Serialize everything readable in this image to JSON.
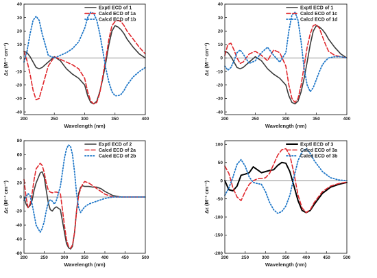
{
  "figure": {
    "background": "#ffffff"
  },
  "chart_data": [
    {
      "type": "line",
      "xlabel": "Wavelength (nm)",
      "ylabel": "Δε (M⁻¹ cm⁻¹)",
      "xlim": [
        200,
        400
      ],
      "ylim": [
        -42,
        40
      ],
      "xticks": [
        200,
        250,
        300,
        350,
        400
      ],
      "yticks": [
        -40,
        -30,
        -20,
        -10,
        0,
        10,
        20,
        30,
        40
      ],
      "zero_line": true,
      "legend_position": "top-right",
      "series": [
        {
          "name": "Exptl ECD of 1",
          "color": "#3a3a3a",
          "style": "solid",
          "width": 1.6,
          "x": [
            200,
            205,
            210,
            215,
            220,
            225,
            230,
            240,
            250,
            260,
            270,
            280,
            290,
            300,
            305,
            310,
            315,
            320,
            325,
            330,
            335,
            340,
            345,
            350,
            355,
            360,
            365,
            370,
            380,
            390,
            400
          ],
          "y": [
            5,
            4,
            1,
            -3,
            -7,
            -8,
            -7,
            -3,
            1,
            -2,
            -8,
            -12,
            -15,
            -20,
            -28,
            -33,
            -34,
            -32,
            -25,
            -15,
            -3,
            10,
            20,
            24,
            23,
            21,
            18,
            14,
            8,
            3,
            0
          ]
        },
        {
          "name": "Calcd ECD of 1a",
          "color": "#e0282d",
          "style": "dash",
          "width": 1.6,
          "x": [
            200,
            205,
            210,
            215,
            220,
            225,
            230,
            240,
            250,
            260,
            270,
            280,
            290,
            300,
            305,
            310,
            315,
            320,
            325,
            330,
            335,
            340,
            345,
            350,
            355,
            360,
            365,
            370,
            380,
            390,
            400
          ],
          "y": [
            5,
            -2,
            -12,
            -24,
            -31,
            -30,
            -22,
            -6,
            1,
            -1,
            -3,
            -5,
            -8,
            -15,
            -25,
            -32,
            -34,
            -33,
            -26,
            -13,
            0,
            14,
            24,
            27,
            28,
            27,
            24,
            20,
            14,
            8,
            3
          ]
        },
        {
          "name": "Calcd ECD of 1b",
          "color": "#1f77c8",
          "style": "dot",
          "width": 1.8,
          "x": [
            200,
            205,
            210,
            215,
            220,
            225,
            230,
            240,
            250,
            260,
            270,
            280,
            290,
            300,
            305,
            310,
            315,
            320,
            325,
            330,
            335,
            340,
            345,
            350,
            355,
            360,
            365,
            370,
            380,
            390,
            400
          ],
          "y": [
            -3,
            5,
            18,
            28,
            31,
            28,
            18,
            2,
            0,
            2,
            4,
            7,
            12,
            22,
            30,
            34,
            33,
            28,
            18,
            5,
            -8,
            -18,
            -25,
            -28,
            -28,
            -27,
            -24,
            -20,
            -14,
            -10,
            -7
          ]
        }
      ]
    },
    {
      "type": "line",
      "xlabel": "Wavelength (nm)",
      "ylabel": "Δε (M⁻¹ cm⁻¹)",
      "xlim": [
        200,
        400
      ],
      "ylim": [
        -42,
        40
      ],
      "xticks": [
        200,
        250,
        300,
        350,
        400
      ],
      "yticks": [
        -40,
        -30,
        -20,
        -10,
        0,
        10,
        20,
        30,
        40
      ],
      "zero_line": true,
      "legend_position": "top-right",
      "series": [
        {
          "name": "Exptl ECD of 1",
          "color": "#3a3a3a",
          "style": "solid",
          "width": 1.6,
          "x": [
            200,
            205,
            210,
            215,
            220,
            225,
            230,
            240,
            250,
            260,
            270,
            280,
            290,
            300,
            305,
            310,
            315,
            320,
            325,
            330,
            335,
            340,
            345,
            350,
            355,
            360,
            365,
            370,
            380,
            390,
            400
          ],
          "y": [
            5,
            4,
            1,
            -3,
            -7,
            -8,
            -7,
            -3,
            1,
            -2,
            -8,
            -12,
            -15,
            -20,
            -28,
            -33,
            -34,
            -32,
            -25,
            -15,
            -3,
            10,
            20,
            24,
            23,
            21,
            18,
            14,
            8,
            3,
            0
          ]
        },
        {
          "name": "Calcd ECD of 1c",
          "color": "#e0282d",
          "style": "dash",
          "width": 1.6,
          "x": [
            200,
            205,
            210,
            215,
            220,
            225,
            230,
            240,
            250,
            260,
            270,
            280,
            290,
            300,
            305,
            310,
            315,
            320,
            325,
            330,
            335,
            340,
            345,
            350,
            355,
            360,
            365,
            370,
            380,
            390,
            400
          ],
          "y": [
            2,
            10,
            11,
            6,
            0,
            -4,
            -3,
            3,
            5,
            2,
            -2,
            6,
            4,
            -6,
            -20,
            -30,
            -33,
            -30,
            -20,
            -6,
            8,
            18,
            24,
            25,
            22,
            16,
            10,
            5,
            2,
            1,
            0
          ]
        },
        {
          "name": "Calcd ECD of 1d",
          "color": "#1f77c8",
          "style": "dot",
          "width": 1.8,
          "x": [
            200,
            205,
            210,
            215,
            220,
            225,
            230,
            240,
            250,
            260,
            270,
            280,
            290,
            300,
            305,
            310,
            315,
            320,
            325,
            330,
            335,
            340,
            345,
            350,
            355,
            360,
            365,
            370,
            380,
            390,
            400
          ],
          "y": [
            -6,
            -9,
            -7,
            -2,
            4,
            6,
            3,
            -4,
            -2,
            4,
            8,
            2,
            -3,
            4,
            20,
            32,
            34,
            28,
            12,
            -8,
            -20,
            -25,
            -22,
            -16,
            -10,
            -5,
            -2,
            0,
            1,
            1,
            0
          ]
        }
      ]
    },
    {
      "type": "line",
      "xlabel": "Wavelength (nm)",
      "ylabel": "Δε (M⁻¹ cm⁻¹)",
      "xlim": [
        200,
        500
      ],
      "ylim": [
        -80,
        80
      ],
      "xticks": [
        200,
        250,
        300,
        350,
        400,
        450,
        500
      ],
      "yticks": [
        -80,
        -60,
        -40,
        -20,
        0,
        20,
        40,
        60,
        80
      ],
      "zero_line": true,
      "legend_position": "top-right",
      "series": [
        {
          "name": "Exptl ECD of 2",
          "color": "#3a3a3a",
          "style": "solid",
          "width": 1.6,
          "x": [
            200,
            205,
            210,
            215,
            220,
            225,
            230,
            240,
            245,
            250,
            255,
            260,
            265,
            270,
            275,
            280,
            290,
            300,
            305,
            310,
            315,
            320,
            325,
            330,
            335,
            340,
            345,
            350,
            360,
            370,
            380,
            390,
            400,
            420,
            440,
            460,
            480,
            500
          ],
          "y": [
            0,
            -10,
            -15,
            -12,
            -5,
            10,
            20,
            34,
            36,
            28,
            10,
            -8,
            -18,
            -20,
            -16,
            -14,
            -18,
            -50,
            -66,
            -72,
            -74,
            -70,
            -50,
            -20,
            5,
            14,
            16,
            15,
            15,
            14,
            14,
            12,
            8,
            2,
            0,
            0,
            0,
            0
          ]
        },
        {
          "name": "Calcd ECD of 2a",
          "color": "#e0282d",
          "style": "dash",
          "width": 1.6,
          "x": [
            200,
            205,
            210,
            215,
            220,
            225,
            230,
            240,
            245,
            250,
            255,
            260,
            265,
            270,
            275,
            280,
            290,
            300,
            305,
            310,
            315,
            320,
            325,
            330,
            335,
            340,
            345,
            350,
            360,
            370,
            380,
            390,
            400,
            420,
            440,
            460,
            480,
            500
          ],
          "y": [
            25,
            0,
            -15,
            -10,
            5,
            25,
            40,
            48,
            45,
            35,
            20,
            10,
            7,
            6,
            7,
            7,
            5,
            -40,
            -60,
            -70,
            -73,
            -68,
            -50,
            -20,
            2,
            12,
            18,
            22,
            20,
            16,
            12,
            8,
            4,
            0,
            0,
            0,
            0,
            0
          ]
        },
        {
          "name": "Calcd ECD of 2b",
          "color": "#1f77c8",
          "style": "dot",
          "width": 1.8,
          "x": [
            200,
            205,
            210,
            215,
            220,
            225,
            230,
            240,
            245,
            250,
            255,
            260,
            265,
            270,
            275,
            280,
            290,
            300,
            305,
            310,
            315,
            320,
            325,
            330,
            335,
            340,
            345,
            350,
            360,
            370,
            380,
            390,
            400,
            420,
            440,
            460,
            480,
            500
          ],
          "y": [
            -5,
            0,
            5,
            2,
            -10,
            -25,
            -40,
            -50,
            -45,
            -35,
            -20,
            -8,
            -4,
            -6,
            -10,
            -5,
            15,
            55,
            68,
            74,
            72,
            60,
            35,
            5,
            -15,
            -22,
            -18,
            -14,
            -10,
            -8,
            -6,
            -4,
            -2,
            0,
            0,
            0,
            0,
            0
          ]
        }
      ]
    },
    {
      "type": "line",
      "xlabel": "Wavelength (nm)",
      "ylabel": "Δε (M⁻¹ cm⁻¹)",
      "xlim": [
        200,
        500
      ],
      "ylim": [
        -200,
        110
      ],
      "xticks": [
        200,
        250,
        300,
        350,
        400,
        450,
        500
      ],
      "yticks": [
        -200,
        -150,
        -100,
        -50,
        0,
        50,
        100
      ],
      "zero_line": true,
      "legend_position": "top-right",
      "series": [
        {
          "name": "Exptl ECD of 3",
          "color": "#000000",
          "style": "solid",
          "width": 2,
          "x": [
            200,
            210,
            220,
            230,
            240,
            250,
            260,
            270,
            280,
            290,
            300,
            310,
            320,
            330,
            340,
            350,
            360,
            370,
            380,
            390,
            400,
            410,
            420,
            440,
            460,
            480,
            500
          ],
          "y": [
            0,
            -25,
            -28,
            -15,
            15,
            18,
            22,
            38,
            30,
            22,
            25,
            28,
            30,
            42,
            50,
            48,
            25,
            -15,
            -55,
            -82,
            -88,
            -82,
            -65,
            -35,
            -18,
            -10,
            -5
          ]
        },
        {
          "name": "Calcd ECD of 3a",
          "color": "#e0282d",
          "style": "dash",
          "width": 1.6,
          "x": [
            200,
            210,
            220,
            230,
            240,
            250,
            260,
            270,
            280,
            290,
            300,
            310,
            320,
            330,
            340,
            350,
            360,
            370,
            380,
            390,
            400,
            410,
            420,
            440,
            460,
            480,
            500
          ],
          "y": [
            40,
            20,
            -20,
            -45,
            -55,
            -30,
            -10,
            0,
            5,
            6,
            8,
            20,
            45,
            70,
            85,
            88,
            70,
            20,
            -40,
            -75,
            -88,
            -80,
            -60,
            -30,
            -15,
            -8,
            -4
          ]
        },
        {
          "name": "Calcd ECD of 3b",
          "color": "#1f77c8",
          "style": "dot",
          "width": 1.8,
          "x": [
            200,
            210,
            220,
            230,
            240,
            250,
            260,
            270,
            280,
            290,
            300,
            310,
            320,
            330,
            340,
            350,
            360,
            370,
            380,
            390,
            400,
            410,
            420,
            440,
            460,
            480,
            500
          ],
          "y": [
            -40,
            -20,
            10,
            45,
            58,
            40,
            10,
            -5,
            -8,
            -10,
            -30,
            -60,
            -80,
            -90,
            -85,
            -70,
            -40,
            10,
            55,
            80,
            88,
            75,
            55,
            25,
            8,
            2,
            0
          ]
        }
      ]
    }
  ]
}
